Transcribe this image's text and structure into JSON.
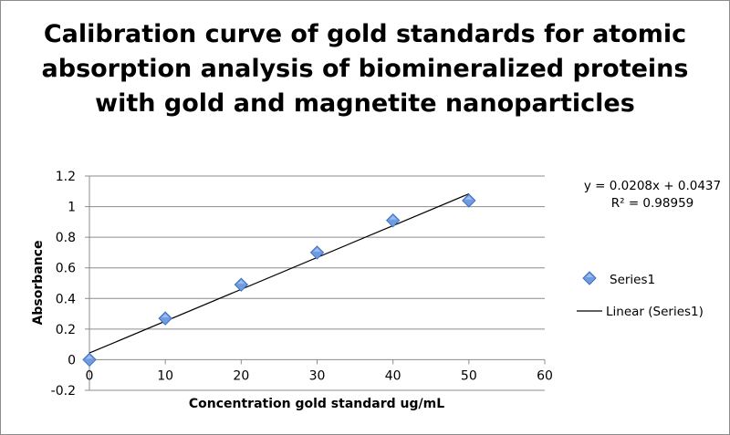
{
  "chart_data": {
    "type": "scatter",
    "title_lines": [
      "Calibration curve of gold standards for atomic",
      "absorption analysis of biomineralized proteins",
      "with gold and magnetite nanoparticles"
    ],
    "xlabel": "Concentration gold standard ug/mL",
    "ylabel": "Absorbance",
    "xlim": [
      0,
      60
    ],
    "ylim": [
      -0.2,
      1.2
    ],
    "x_ticks": [
      0,
      10,
      20,
      30,
      40,
      50,
      60
    ],
    "y_ticks": [
      -0.2,
      0,
      0.2,
      0.4,
      0.6,
      0.8,
      1,
      1.2
    ],
    "grid": "horizontal",
    "series": [
      {
        "name": "Series1",
        "marker": "diamond",
        "color": "#6f9be0",
        "x": [
          0,
          10,
          20,
          30,
          40,
          50
        ],
        "y": [
          0,
          0.27,
          0.49,
          0.7,
          0.91,
          1.04
        ]
      }
    ],
    "trendline": {
      "name": "Linear (Series1)",
      "slope": 0.0208,
      "intercept": 0.0437,
      "x_range": [
        0,
        50
      ],
      "color": "#000000"
    },
    "equation_text": "y = 0.0208x + 0.0437",
    "r2_text": "R² = 0.98959",
    "legend_position": "right"
  }
}
